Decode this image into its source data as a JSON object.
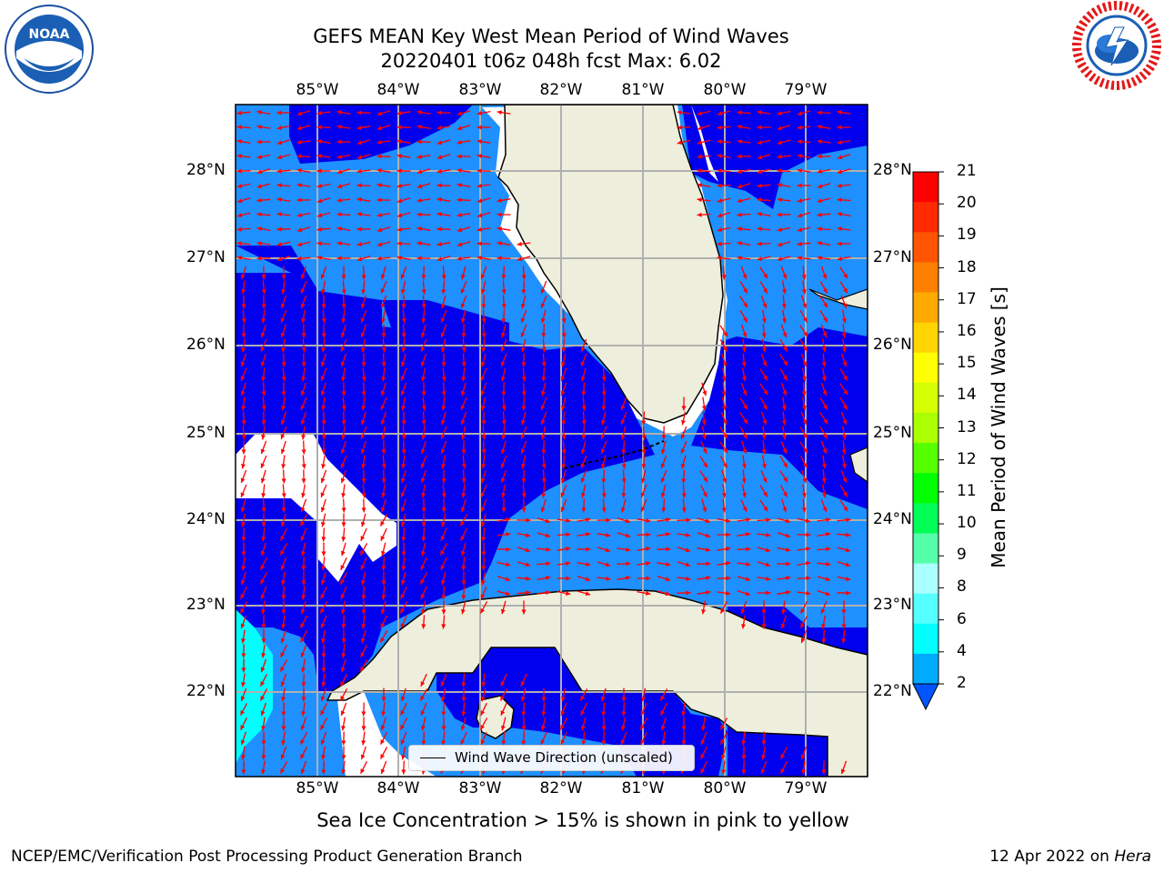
{
  "title": {
    "line1": "GEFS MEAN Key West Mean Period of Wind Waves",
    "line2": "20220401 t06z 048h fcst   Max: 6.02"
  },
  "axes": {
    "lon_labels": [
      "85°W",
      "84°W",
      "83°W",
      "82°W",
      "81°W",
      "80°W",
      "79°W"
    ],
    "lat_labels": [
      "28°N",
      "27°N",
      "26°N",
      "25°N",
      "24°N",
      "23°N",
      "22°N"
    ]
  },
  "colorbar": {
    "label": "Mean Period of Wind Waves [s]",
    "ticks": [
      "21",
      "20",
      "19",
      "18",
      "17",
      "16",
      "15",
      "14",
      "13",
      "12",
      "11",
      "10",
      "9",
      "8",
      "6",
      "4",
      "2"
    ],
    "colors": [
      "#ff0000",
      "#ff2a00",
      "#ff5500",
      "#ff8000",
      "#ffaa00",
      "#ffd400",
      "#ffff00",
      "#d4ff00",
      "#aaff00",
      "#55ff00",
      "#00ff00",
      "#00ff55",
      "#55ffaa",
      "#aaffff",
      "#55ffff",
      "#00ffff",
      "#00aaff",
      "#0055ff"
    ]
  },
  "legend": {
    "text": "Wind Wave Direction (unscaled)"
  },
  "note": "Sea Ice Concentration > 15% is shown in pink to yellow",
  "footer": {
    "left": "NCEP/EMC/Verification Post Processing Product Generation Branch",
    "right_prefix": "12 Apr 2022 on ",
    "right_host": "Hera"
  },
  "logos": {
    "left": "NOAA",
    "right": "NATIONAL WEATHER SERVICE"
  },
  "style": {
    "land": "#eeeedd",
    "dark_blue": "#0000ee",
    "mid_blue": "#1e90ff",
    "cyan": "#00ffff",
    "arrow": "#ff0000",
    "grid": "#b0b0b0"
  }
}
